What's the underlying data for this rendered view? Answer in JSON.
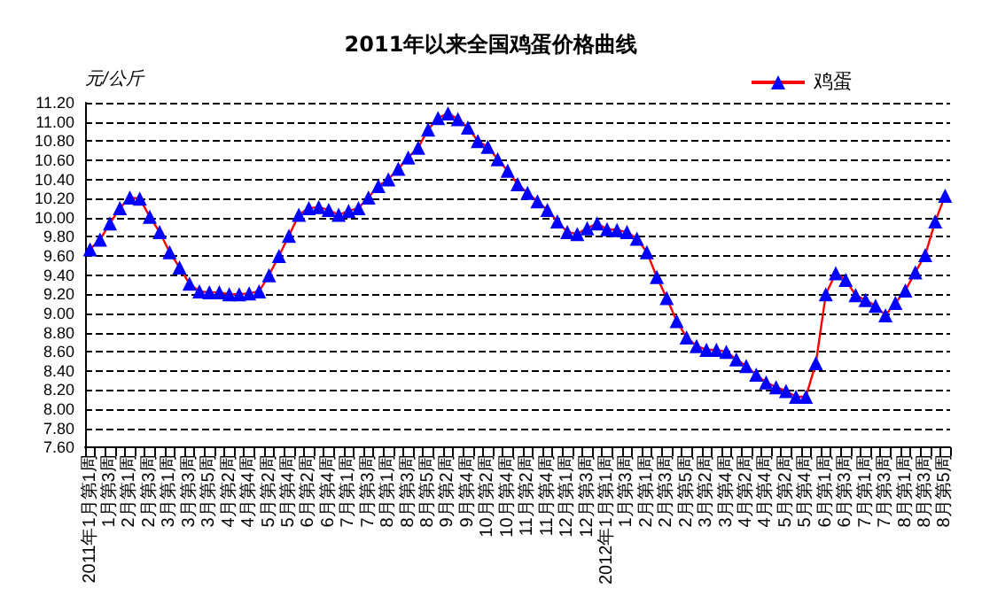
{
  "chart_data": {
    "type": "line",
    "title": "2011年以来全国鸡蛋价格曲线",
    "ylabel": "元/公斤",
    "categories": [
      "2011年1月第1周",
      null,
      "1月第3周",
      null,
      "2月第1周",
      null,
      "2月第3周",
      null,
      "3月第1周",
      null,
      "3月第3周",
      null,
      "3月第5周",
      null,
      "4月第2周",
      null,
      "4月第4周",
      null,
      "5月第2周",
      null,
      "5月第4周",
      null,
      "6月第2周",
      null,
      "6月第4周",
      null,
      "7月第1周",
      null,
      "7月第3周",
      null,
      "8月第1周",
      null,
      "8月第3周",
      null,
      "8月第5周",
      null,
      "9月第2周",
      null,
      "9月第4周",
      null,
      "10月第2周",
      null,
      "10月第4周",
      null,
      "11月第2周",
      null,
      "11月第4周",
      null,
      "12月第1周",
      null,
      "12月第3周",
      null,
      "2012年1月第1周",
      null,
      "1月第3周",
      null,
      "2月第1周",
      null,
      "2月第3周",
      null,
      "2月第5周",
      null,
      "3月第2周",
      null,
      "3月第4周",
      null,
      "4月第2周",
      null,
      "4月第4周",
      null,
      "5月第2周",
      null,
      "5月第4周",
      null,
      "6月第1周",
      null,
      "6月第3周",
      null,
      "7月第1周",
      null,
      "7月第3周",
      null,
      "8月第1周",
      null,
      "8月第3周",
      null,
      "8月第5周"
    ],
    "series": [
      {
        "name": "鸡蛋",
        "color": "#ff0000",
        "colors": [
          "#0000ff",
          "#0000ff",
          "#0000ff",
          "#0000ff",
          "#0000ff",
          "#0000ff",
          "#0000ff",
          "#0000ff",
          "#0000ff",
          "#0000ff",
          "#0000ff",
          "#0000ff",
          "#0000ff",
          "#0000ff",
          "#0000ff",
          "#0000ff",
          "#0000ff",
          "#0000ff",
          "#0000ff",
          "#0000ff",
          "#0000ff",
          "#0000ff",
          "#0000ff",
          "#0000ff",
          "#0000ff",
          "#0000ff",
          "#0000ff",
          "#0000ff",
          "#0000ff",
          "#0000ff",
          "#0000ff",
          "#0000ff",
          "#0000ff",
          "#0000ff",
          "#0000ff",
          "#0000ff",
          "#0000ff",
          "#0000ff",
          "#0000ff",
          "#0000ff",
          "#0000ff",
          "#0000ff",
          "#0000ff",
          "#0000ff",
          "#0000ff",
          "#0000ff",
          "#0000ff",
          "#0000ff",
          "#0000ff",
          "#0000ff",
          "#0000ff",
          "#0000ff",
          "#0000ff",
          "#0000ff",
          "#0000ff",
          "#0000ff",
          "#0000ff",
          "#0000ff",
          "#0000ff",
          "#0000ff",
          "#0000ff",
          "#0000ff",
          "#0000ff",
          "#0000ff",
          "#0000ff",
          "#0000ff",
          "#0000ff",
          "#0000ff",
          "#0000ff",
          "#0000ff",
          "#0000ff",
          "#0000ff",
          "#0000ff",
          "#0000ff",
          "#0000ff",
          "#0000ff",
          "#0000ff",
          "#0000ff",
          "#0000ff",
          "#0000ff",
          "#0000ff",
          "#0000ff",
          "#0000ff",
          "#0000ff",
          "#0000ff",
          "#0000ff",
          "#0000ff"
        ],
        "values": [
          9.67,
          9.77,
          9.94,
          10.1,
          10.21,
          10.2,
          10.01,
          9.85,
          9.64,
          9.48,
          9.31,
          9.23,
          9.22,
          9.22,
          9.2,
          9.2,
          9.21,
          9.23,
          9.4,
          9.6,
          9.81,
          10.03,
          10.1,
          10.11,
          10.08,
          10.03,
          10.07,
          10.1,
          10.21,
          10.33,
          10.4,
          10.51,
          10.63,
          10.73,
          10.92,
          11.04,
          11.09,
          11.03,
          10.94,
          10.8,
          10.74,
          10.61,
          10.49,
          10.35,
          10.26,
          10.17,
          10.08,
          9.96,
          9.85,
          9.83,
          9.89,
          9.94,
          9.88,
          9.87,
          9.85,
          9.78,
          9.64,
          9.38,
          9.16,
          8.92,
          8.75,
          8.66,
          8.62,
          8.62,
          8.6,
          8.52,
          8.45,
          8.36,
          8.28,
          8.23,
          8.19,
          8.13,
          8.13,
          8.48,
          9.2,
          9.42,
          9.35,
          9.19,
          9.14,
          9.08,
          8.98,
          9.11,
          9.24,
          9.43,
          9.61,
          9.96,
          10.23
        ]
      }
    ],
    "ylim": [
      7.6,
      11.2
    ],
    "yticks": [
      {
        "value": 7.6,
        "label": "7.60"
      },
      {
        "value": 7.8,
        "label": "7.80"
      },
      {
        "value": 8.0,
        "label": "8.00"
      },
      {
        "value": 8.2,
        "label": "8.20"
      },
      {
        "value": 8.4,
        "label": "8.40"
      },
      {
        "value": 8.6,
        "label": "8.60"
      },
      {
        "value": 8.8,
        "label": "8.80"
      },
      {
        "value": 9.0,
        "label": "9.00"
      },
      {
        "value": 9.2,
        "label": "9.20"
      },
      {
        "value": 9.4,
        "label": "9.40"
      },
      {
        "value": 9.6,
        "label": "9.60"
      },
      {
        "value": 9.8,
        "label": "9.80"
      },
      {
        "value": 10.0,
        "label": "10.00"
      },
      {
        "value": 10.2,
        "label": "10.20"
      },
      {
        "value": 10.4,
        "label": "10.40"
      },
      {
        "value": 10.6,
        "label": "10.60"
      },
      {
        "value": 10.8,
        "label": "10.80"
      },
      {
        "value": 11.0,
        "label": "11.00"
      },
      {
        "value": 11.2,
        "label": "11.20"
      }
    ],
    "grid": "y",
    "legend": "top right",
    "marker": "triangle",
    "line_style": "solid"
  }
}
